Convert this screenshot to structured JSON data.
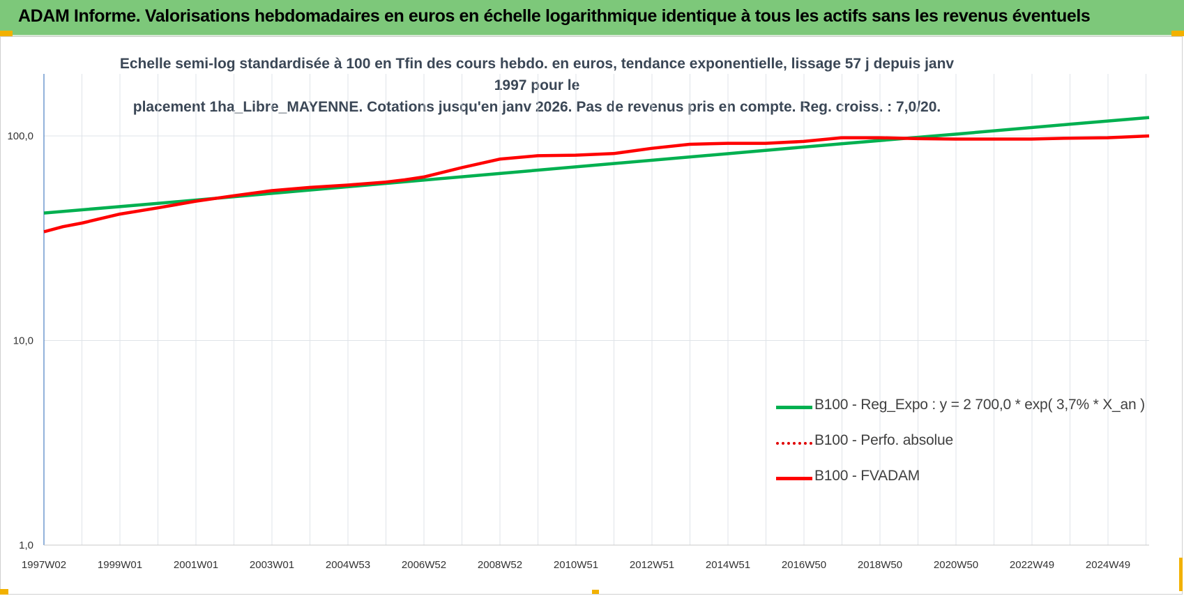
{
  "header": {
    "title": "ADAM Informe. Valorisations hebdomadaires en euros en échelle logarithmique identique à tous les actifs sans les revenus éventuels"
  },
  "colors": {
    "banner": "#7dc87a",
    "regression": "#00b050",
    "perf_absolue": "#e00000",
    "fvadam": "#ff0000",
    "accent_corner": "#f2b100"
  },
  "chart_data": {
    "type": "line",
    "title_line1": "Echelle semi-log standardisée à 100 en Tfin des cours hebdo. en euros, tendance exponentielle, lissage 57 j depuis janv 1997 pour le",
    "title_line2": "placement 1ha_Libre_MAYENNE. Cotations jusqu'en janv 2026. Pas de revenus pris en compte. Reg. croiss. : 7,0/20.",
    "xlabel": "",
    "ylabel": "",
    "y_scale": "log",
    "ylim": [
      1,
      200
    ],
    "y_ticks": [
      "1,0",
      "10,0",
      "100,0"
    ],
    "y_tick_values": [
      1,
      10,
      100
    ],
    "xlim": [
      1997.0,
      2026.1
    ],
    "x_tick_labels": [
      "1997W02",
      "1999W01",
      "2001W01",
      "2003W01",
      "2004W53",
      "2006W52",
      "2008W52",
      "2010W51",
      "2012W51",
      "2014W51",
      "2016W50",
      "2018W50",
      "2020W50",
      "2022W49",
      "2024W49"
    ],
    "grid": true,
    "legend_position": "bottom-right",
    "series": [
      {
        "name": "B100 - Reg_Expo : y = 2 700,0 * exp( 3,7% *  X_an )",
        "style": "solid-green",
        "x": [
          1997.0,
          2000.0,
          2003.0,
          2006.0,
          2009.0,
          2012.0,
          2015.0,
          2018.0,
          2021.0,
          2024.0,
          2026.1
        ],
        "y": [
          42.0,
          46.8,
          52.4,
          58.6,
          65.5,
          73.3,
          81.9,
          91.6,
          102.0,
          114.0,
          123.0
        ]
      },
      {
        "name": "B100 - Perfo. absolue",
        "style": "dotted-red",
        "x": [],
        "y": []
      },
      {
        "name": "B100 - FVADAM",
        "style": "solid-red",
        "x": [
          1997.0,
          1997.5,
          1998.0,
          1999.0,
          2000.0,
          2001.0,
          2002.0,
          2003.0,
          2004.0,
          2005.0,
          2006.0,
          2006.5,
          2007.0,
          2008.0,
          2009.0,
          2010.0,
          2011.0,
          2012.0,
          2013.0,
          2014.0,
          2015.0,
          2016.0,
          2017.0,
          2018.0,
          2019.0,
          2020.0,
          2021.0,
          2022.0,
          2023.0,
          2024.0,
          2025.0,
          2026.1
        ],
        "y": [
          34.0,
          36.0,
          37.5,
          41.5,
          44.5,
          48.0,
          51.0,
          54.0,
          56.0,
          57.5,
          59.5,
          61.0,
          63.0,
          70.0,
          77.0,
          80.0,
          80.5,
          82.0,
          87.0,
          91.0,
          92.0,
          92.0,
          94.0,
          98.0,
          98.0,
          97.0,
          96.5,
          96.5,
          96.5,
          97.5,
          98.0,
          100.0
        ]
      }
    ]
  }
}
